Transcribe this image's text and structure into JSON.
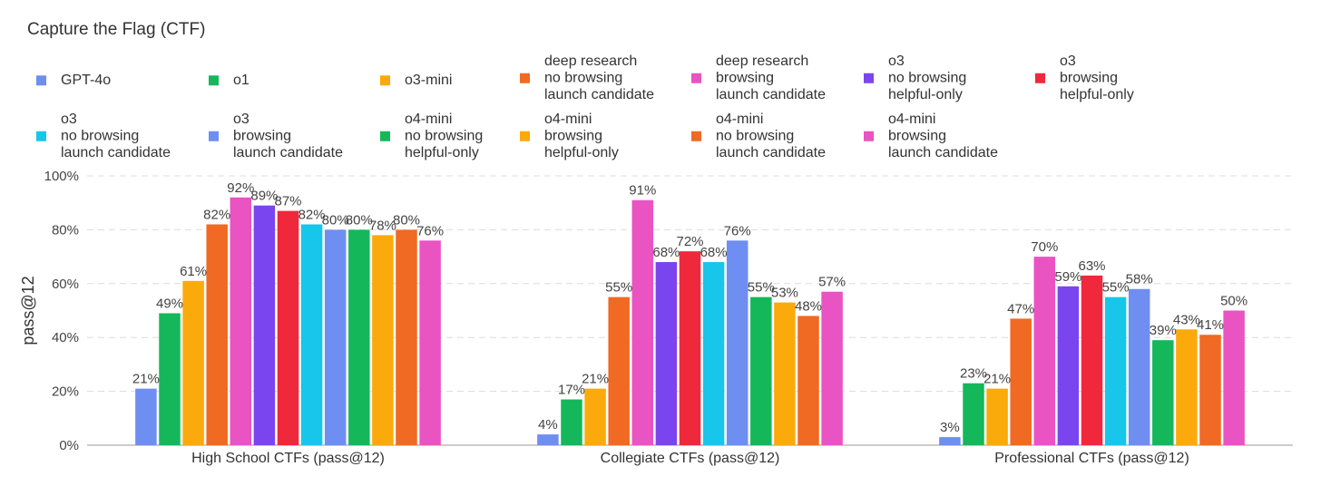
{
  "chart_data": {
    "type": "bar",
    "title": "Capture the Flag (CTF)",
    "xlabel": "",
    "ylabel": "pass@12",
    "ylim": [
      0,
      100
    ],
    "yticks": [
      0,
      20,
      40,
      60,
      80,
      100
    ],
    "ytick_labels": [
      "0%",
      "20%",
      "40%",
      "60%",
      "80%",
      "100%"
    ],
    "grid": true,
    "legend_position": "top",
    "categories": [
      "High School CTFs (pass@12)",
      "Collegiate CTFs (pass@12)",
      "Professional CTFs (pass@12)"
    ],
    "series": [
      {
        "name": "GPT-4o",
        "color": "#6f8ef2",
        "values": [
          21,
          4,
          3
        ],
        "labels": [
          "21%",
          "4%",
          "3%"
        ]
      },
      {
        "name": "o1",
        "color": "#14b85a",
        "values": [
          49,
          17,
          23
        ],
        "labels": [
          "49%",
          "17%",
          "23%"
        ]
      },
      {
        "name": "o3-mini",
        "color": "#fbaa0b",
        "values": [
          61,
          21,
          21
        ],
        "labels": [
          "61%",
          "21%",
          "21%"
        ]
      },
      {
        "name": "deep research\nno browsing\nlaunch candidate",
        "color": "#f06a23",
        "values": [
          82,
          55,
          47
        ],
        "labels": [
          "82%",
          "55%",
          "47%"
        ]
      },
      {
        "name": "deep research\nbrowsing\nlaunch candidate",
        "color": "#ea53c2",
        "values": [
          92,
          91,
          70
        ],
        "labels": [
          "92%",
          "91%",
          "70%"
        ]
      },
      {
        "name": "o3\nno browsing\nhelpful-only",
        "color": "#7a45ee",
        "values": [
          89,
          68,
          59
        ],
        "labels": [
          "89%",
          "68%",
          "59%"
        ]
      },
      {
        "name": "o3\nbrowsing\nhelpful-only",
        "color": "#f0283c",
        "values": [
          87,
          72,
          63
        ],
        "labels": [
          "87%",
          "72%",
          "63%"
        ]
      },
      {
        "name": "o3\nno browsing\nlaunch candidate",
        "color": "#17c6ea",
        "values": [
          82,
          68,
          55
        ],
        "labels": [
          "82%",
          "68%",
          "55%"
        ]
      },
      {
        "name": "o3\nbrowsing\nlaunch candidate",
        "color": "#6f8ef2",
        "values": [
          80,
          76,
          58
        ],
        "labels": [
          "80%",
          "76%",
          "58%"
        ]
      },
      {
        "name": "o4-mini\nno browsing\nhelpful-only",
        "color": "#14b85a",
        "values": [
          80,
          55,
          39
        ],
        "labels": [
          "80%",
          "55%",
          "39%"
        ]
      },
      {
        "name": "o4-mini\nbrowsing\nhelpful-only",
        "color": "#fbaa0b",
        "values": [
          78,
          53,
          43
        ],
        "labels": [
          "78%",
          "53%",
          "43%"
        ]
      },
      {
        "name": "o4-mini\nno browsing\nlaunch candidate",
        "color": "#f06a23",
        "values": [
          80,
          48,
          41
        ],
        "labels": [
          "80%",
          "48%",
          "41%"
        ]
      },
      {
        "name": "o4-mini\nbrowsing\nlaunch candidate",
        "color": "#ea53c2",
        "values": [
          76,
          57,
          50
        ],
        "labels": [
          "76%",
          "57%",
          "50%"
        ]
      }
    ]
  }
}
